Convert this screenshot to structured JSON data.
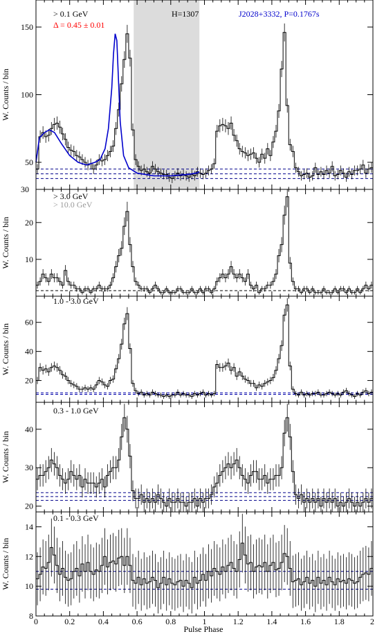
{
  "figure": {
    "xlabel": "Pulse Phase",
    "xlim": [
      0,
      2
    ],
    "xticks": [
      "0",
      "0.2",
      "0.4",
      "0.6",
      "0.8",
      "1",
      "1.2",
      "1.4",
      "1.6",
      "1.8",
      "2"
    ]
  },
  "chart_data": [
    {
      "type": "histogram",
      "panel": "top",
      "energy_label": "> 0.1 GeV",
      "delta_label": "Δ = 0.45 ± 0.01",
      "h_label": "H=1307",
      "source_label": "J2028+3332, P=0.1767s",
      "ylabel": "W. Counts / bin",
      "ylim": [
        30,
        170
      ],
      "yticks": [
        "50",
        "100",
        "150"
      ],
      "ytick_values": [
        50,
        100,
        150
      ],
      "bottom_label": "30",
      "offpulse_region": [
        0.58,
        0.97
      ],
      "background_levels": [
        38,
        41.5,
        45
      ],
      "colors": {
        "histogram": "#000000",
        "fit": "#0000cc",
        "background": "#00008b",
        "shade": "#dcdcdc",
        "delta": "#ff0000",
        "source": "#0000cc"
      },
      "fit_curve": {
        "x": [
          0.0,
          0.02,
          0.05,
          0.08,
          0.11,
          0.15,
          0.2,
          0.25,
          0.3,
          0.35,
          0.38,
          0.41,
          0.43,
          0.45,
          0.46,
          0.47,
          0.48,
          0.49,
          0.5,
          0.52,
          0.55,
          0.6,
          0.7,
          0.8,
          0.9,
          0.95,
          0.97
        ],
        "y": [
          50,
          68,
          72,
          74,
          72,
          64,
          55,
          50,
          48,
          50,
          52,
          60,
          75,
          105,
          130,
          145,
          140,
          110,
          80,
          55,
          46,
          42,
          40,
          40,
          41,
          42,
          43
        ]
      },
      "values": [
        45,
        69,
        72,
        69,
        70,
        75,
        78,
        79,
        76,
        71,
        67,
        61,
        59,
        58,
        55,
        54,
        52,
        50,
        48,
        49,
        45,
        48,
        52,
        51,
        52,
        55,
        58,
        62,
        75,
        89,
        108,
        126,
        145,
        127,
        74,
        52,
        47,
        44,
        45,
        43,
        42,
        47,
        45,
        43,
        42,
        41,
        41,
        39,
        38,
        40,
        42,
        40,
        41,
        40,
        39,
        41,
        40,
        43,
        42,
        41,
        42,
        44,
        45,
        49,
        73,
        77,
        78,
        77,
        75,
        79,
        70,
        66,
        60,
        58,
        57,
        55,
        56,
        57,
        53,
        50,
        56,
        53,
        60,
        55,
        65,
        73,
        88,
        119,
        146,
        92,
        63,
        58,
        46,
        43,
        40,
        41,
        42,
        39,
        40,
        46,
        41,
        43,
        41,
        44,
        42,
        47,
        40,
        41,
        44,
        42,
        39,
        43,
        41,
        44,
        44,
        45,
        48,
        42,
        45,
        46
      ]
    },
    {
      "type": "histogram",
      "panel": "second",
      "energy_label": "> 3.0 GeV",
      "energy_label_2": "> 10.0 GeV",
      "ylabel": "W. Counts / bin",
      "ylim": [
        0,
        29
      ],
      "yticks": [
        "10",
        "20"
      ],
      "ytick_values": [
        10,
        20
      ],
      "background_levels": [
        1.5
      ],
      "colors": {
        "histogram": "#000000",
        "high_energy": "#999999",
        "background": "#000000"
      },
      "values": [
        3,
        4,
        6,
        5,
        4,
        6,
        5,
        5,
        4,
        3,
        7,
        4,
        3,
        3,
        2,
        2,
        1,
        2,
        2,
        1,
        2,
        2,
        3,
        2,
        2,
        2,
        3,
        5,
        8,
        11,
        13,
        19,
        23,
        14,
        8,
        4,
        3,
        2,
        2,
        2,
        1,
        2,
        3,
        2,
        1,
        1,
        2,
        1,
        1,
        1,
        2,
        2,
        1,
        1,
        1,
        2,
        1,
        1,
        2,
        1,
        2,
        2,
        1,
        2,
        4,
        5,
        6,
        5,
        6,
        8,
        6,
        5,
        6,
        5,
        4,
        6,
        3,
        2,
        3,
        1,
        2,
        2,
        3,
        3,
        4,
        6,
        11,
        14,
        22,
        27,
        9,
        4,
        2,
        2,
        1,
        2,
        2,
        1,
        2,
        1,
        1,
        1,
        2,
        1,
        1,
        1,
        2,
        1,
        2,
        2,
        1,
        2,
        1,
        1,
        2,
        1,
        2,
        3,
        2,
        3
      ]
    },
    {
      "type": "histogram",
      "panel": "third",
      "energy_label": "1.0 - 3.0 GeV",
      "ylabel": "W. Counts / bin",
      "ylim": [
        5,
        78
      ],
      "yticks": [
        "20",
        "40",
        "60"
      ],
      "ytick_values": [
        20,
        40,
        60
      ],
      "background_levels": [
        10.5,
        11.5
      ],
      "colors": {
        "histogram": "#000000",
        "background": "#0000aa"
      },
      "values": [
        20,
        29,
        27,
        28,
        26,
        29,
        30,
        29,
        27,
        24,
        23,
        20,
        18,
        17,
        16,
        14,
        14,
        15,
        14,
        15,
        14,
        17,
        20,
        19,
        17,
        16,
        20,
        21,
        28,
        35,
        45,
        59,
        66,
        42,
        18,
        13,
        11,
        12,
        10,
        11,
        10,
        12,
        11,
        10,
        10,
        9,
        10,
        9,
        10,
        10,
        12,
        10,
        11,
        10,
        10,
        9,
        11,
        10,
        11,
        12,
        10,
        11,
        10,
        11,
        31,
        29,
        29,
        30,
        32,
        27,
        29,
        23,
        26,
        23,
        21,
        20,
        18,
        18,
        15,
        17,
        16,
        18,
        19,
        20,
        22,
        27,
        35,
        44,
        65,
        72,
        30,
        14,
        11,
        10,
        12,
        10,
        11,
        10,
        11,
        11,
        12,
        10,
        10,
        11,
        12,
        11,
        10,
        11,
        10,
        12,
        13,
        11,
        10,
        9,
        11,
        10,
        12,
        13,
        11,
        12
      ]
    },
    {
      "type": "histogram",
      "panel": "fourth",
      "energy_label": "0.3 - 1.0 GeV",
      "ylabel": "W. Counts / bin",
      "ylim": [
        18.5,
        47
      ],
      "yticks": [
        "20",
        "30",
        "40"
      ],
      "ytick_values": [
        20,
        30,
        40
      ],
      "background_levels": [
        21.5,
        22.5,
        23.5
      ],
      "colors": {
        "histogram": "#000000",
        "background": "#00008b"
      },
      "values": [
        27,
        28,
        28,
        29,
        30,
        32,
        31,
        30,
        28,
        27,
        26,
        27,
        29,
        28,
        27,
        28,
        25,
        27,
        26,
        26,
        26,
        25,
        26,
        27,
        25,
        28,
        29,
        30,
        30,
        32,
        38,
        43,
        40,
        33,
        24,
        22,
        22,
        23,
        21,
        22,
        21,
        22,
        21,
        23,
        22,
        21,
        20,
        22,
        21,
        21,
        22,
        21,
        21,
        20,
        21,
        21,
        22,
        20,
        22,
        21,
        22,
        22,
        23,
        25,
        26,
        28,
        29,
        30,
        31,
        30,
        31,
        32,
        30,
        28,
        27,
        26,
        28,
        29,
        29,
        27,
        27,
        28,
        26,
        27,
        27,
        28,
        28,
        30,
        39,
        43,
        38,
        29,
        23,
        22,
        23,
        21,
        22,
        21,
        22,
        21,
        22,
        20,
        22,
        21,
        22,
        21,
        22,
        20,
        21,
        20,
        21,
        22,
        21,
        20,
        21,
        20,
        21,
        22,
        21,
        22
      ]
    },
    {
      "type": "histogram",
      "panel": "bottom",
      "energy_label": "0.1 - 0.3 GeV",
      "ylabel": "W. Counts / bin",
      "ylim": [
        8,
        15
      ],
      "yticks": [
        "8",
        "10",
        "12",
        "14"
      ],
      "ytick_values": [
        8,
        10,
        12,
        14
      ],
      "background_levels": [
        9.8,
        11.0
      ],
      "colors": {
        "histogram": "#000000",
        "background": "#00008b"
      },
      "values": [
        10.5,
        10.8,
        11.3,
        11.2,
        11.6,
        12.6,
        12.1,
        11.4,
        10.8,
        11.2,
        10.6,
        10.4,
        10.5,
        11.0,
        11.2,
        10.7,
        11.5,
        11.0,
        11.6,
        11.0,
        10.8,
        11.1,
        11.0,
        11.4,
        12.0,
        11.3,
        11.6,
        11.7,
        11.5,
        11.9,
        12.0,
        11.4,
        12.0,
        11.4,
        10.4,
        10.2,
        10.6,
        10.1,
        10.5,
        10.2,
        10.3,
        10.6,
        10.4,
        9.9,
        10.2,
        10.6,
        10.1,
        10.5,
        10.2,
        10.1,
        10.3,
        10.4,
        10.0,
        10.4,
        10.2,
        9.9,
        10.6,
        10.2,
        10.4,
        10.8,
        10.4,
        11.0,
        10.7,
        11.2,
        11.0,
        10.8,
        11.3,
        11.0,
        11.4,
        11.6,
        11.2,
        11.0,
        11.8,
        12.9,
        12.1,
        11.5,
        11.6,
        11.0,
        11.3,
        11.4,
        11.3,
        11.6,
        11.0,
        11.4,
        11.6,
        11.1,
        11.2,
        11.6,
        12.2,
        12.0,
        11.2,
        10.3,
        10.4,
        10.5,
        10.1,
        10.3,
        10.6,
        10.2,
        10.4,
        10.0,
        10.6,
        10.2,
        10.4,
        10.1,
        10.6,
        10.3,
        10.1,
        10.5,
        10.3,
        10.4,
        10.2,
        10.5,
        10.4,
        10.2,
        10.3,
        10.6,
        10.8,
        10.9,
        10.8,
        11.2
      ]
    }
  ]
}
